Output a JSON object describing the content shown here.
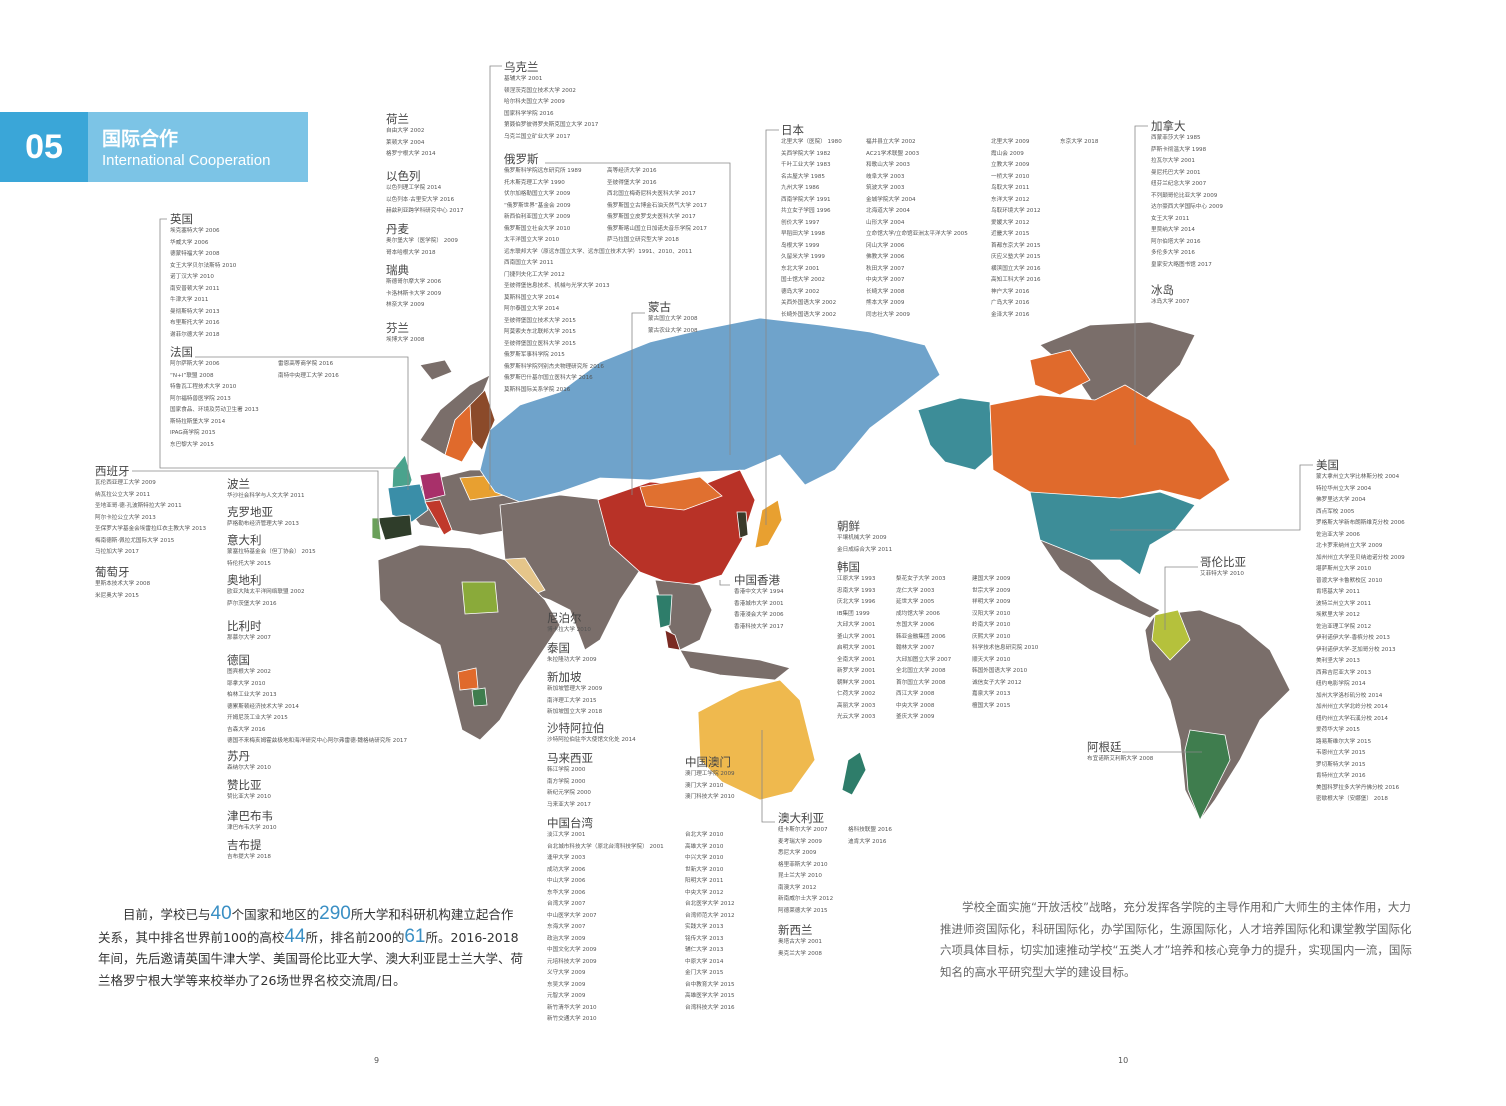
{
  "header": {
    "number": "05",
    "title_zh": "国际合作",
    "title_en": "International Cooperation"
  },
  "colors": {
    "band": "#7cc4e6",
    "band_dark": "#3aa6d8",
    "land": "#7a6e6a",
    "russia": "#6fa3cb",
    "china": "#b83227",
    "canada": "#e06a2c",
    "usa": "#3d8d98",
    "australia": "#efb94e",
    "colombia": "#b5c13c",
    "argentina": "#3f7d4e"
  },
  "countries": [
    {
      "name": "乌克兰",
      "cols": [
        [
          "基辅大学 2001",
          "顿涅茨克国立技术大学 2002",
          "哈尔科夫国立大学 2009",
          "国家科学学院 2016",
          "第聂伯罗彼得罗夫斯克国立大学 2017",
          "乌克兰国立矿业大学 2017"
        ]
      ]
    },
    {
      "name": "荷兰",
      "cols": [
        [
          "自由大学 2002",
          "莱顿大学 2004",
          "格罗宁根大学 2014"
        ]
      ]
    },
    {
      "name": "以色列",
      "cols": [
        [
          "以色列理工学院 2014",
          "以色列本·古里安大学 2016",
          "赫兹利亚跨学科研究中心 2017"
        ]
      ]
    },
    {
      "name": "丹麦",
      "cols": [
        [
          "奥尔堡大学（医学院） 2009",
          "哥本哈根大学 2018"
        ]
      ]
    },
    {
      "name": "瑞典",
      "cols": [
        [
          "斯德哥尔摩大学 2006",
          "卡洛林斯卡大学 2009",
          "林奈大学 2009"
        ]
      ]
    },
    {
      "name": "芬兰",
      "cols": [
        [
          "埃博大学 2008"
        ]
      ]
    },
    {
      "name": "俄罗斯",
      "cols": [
        [
          "俄罗斯科学院远东研究所 1989",
          "托木斯克理工大学 1990",
          "伏尔加格勒国立大学 2009",
          "“俄罗斯世界”基金会 2009",
          "新西伯利亚国立大学 2009",
          "俄罗斯国立社会大学 2010",
          "太平洋国立大学 2010",
          "远东联邦大学（原远东国立大学、远东国立技术大学）1991、2010、2011",
          "西南国立大学 2011",
          "门捷列夫化工大学 2012",
          "圣彼得堡信息技术、机械与光学大学 2013",
          "莫斯科国立大学 2014",
          "阿尔泰国立大学 2014",
          "圣彼得堡国立技术大学 2015",
          "阿莫索夫东北联邦大学 2015",
          "圣彼得堡国立医科大学 2015",
          "俄罗斯军事科学院 2015",
          "俄罗斯科学院列别杰夫物理研究所 2016",
          "俄罗斯巴什基尔国立医科大学 2016",
          "莫斯科国际关系学院 2016"
        ],
        [
          "高等经济大学 2016",
          "圣彼得堡大学 2016",
          "西北国立梅奇尼科夫医科大学 2017",
          "俄罗斯国立古博金石油天然气大学 2017",
          "俄罗斯国立皮罗戈夫医科大学 2017",
          "俄罗斯喀山国立日加诺夫音乐学院 2017",
          "萨马拉国立研究型大学 2018"
        ]
      ]
    },
    {
      "name": "英国",
      "cols": [
        [
          "埃克塞特大学 2006",
          "华威大学 2006",
          "德蒙特福大学 2008",
          "女王大学贝尔法斯特 2010",
          "诺丁汉大学 2010",
          "南安普顿大学 2011",
          "牛津大学 2011",
          "曼彻斯特大学 2013",
          "布里斯托大学 2016",
          "谢菲尔德大学 2018"
        ]
      ]
    },
    {
      "name": "法国",
      "cols": [
        [
          "阿尔萨斯大学 2006",
          "“N+I”联盟 2008",
          "特鲁瓦工程技术大学 2010",
          "阿尔福特兽医学院 2013",
          "国家食品、环境及劳动卫生署 2013",
          "斯特拉斯堡大学 2014",
          "IPAG商学院 2015",
          "东巴黎大学 2015"
        ],
        [
          "雷恩高等商学院 2016",
          "南特中央理工大学 2016"
        ]
      ]
    },
    {
      "name": "西班牙",
      "cols": [
        [
          "瓦伦西亚理工大学 2009",
          "纳瓦拉公立大学 2011",
          "圣地亚哥·德·孔波斯特拉大学 2011",
          "阿尔卡拉公立大学 2013",
          "圣保罗大学基金会埃雷拉红衣主教大学 2013",
          "梅南德斯·佩拉尤国际大学 2015",
          "马拉加大学 2017"
        ]
      ]
    },
    {
      "name": "葡萄牙",
      "cols": [
        [
          "里斯本技术大学 2008",
          "米尼奥大学 2015"
        ]
      ]
    },
    {
      "name": "波兰",
      "cols": [
        [
          "华沙社会科学与人文大学 2011"
        ]
      ]
    },
    {
      "name": "克罗地亚",
      "cols": [
        [
          "萨格勒布经济管理大学 2013"
        ]
      ]
    },
    {
      "name": "意大利",
      "cols": [
        [
          "蒙塞拉特基金会（但丁协会） 2015",
          "特伦托大学 2015"
        ]
      ]
    },
    {
      "name": "奥地利",
      "cols": [
        [
          "欧亚大陆太平洋网络联盟 2002",
          "萨尔茨堡大学 2016"
        ]
      ]
    },
    {
      "name": "比利时",
      "cols": [
        [
          "那慕尔大学 2007"
        ]
      ]
    },
    {
      "name": "德国",
      "cols": [
        [
          "图宾根大学 2002",
          "耶拿大学 2010",
          "柏林工业大学 2013",
          "德累斯顿经济技术大学 2014",
          "开姆尼茨工业大学 2015",
          "吉森大学 2016",
          "德国不来梅亥姆霍兹极地和海洋研究中心阿尔弗雷德·魏格纳研究所 2017"
        ]
      ]
    },
    {
      "name": "苏丹",
      "cols": [
        [
          "森纳尔大学 2010"
        ]
      ]
    },
    {
      "name": "赞比亚",
      "cols": [
        [
          "赞比亚大学 2010"
        ]
      ]
    },
    {
      "name": "津巴布韦",
      "cols": [
        [
          "津巴布韦大学 2010"
        ]
      ]
    },
    {
      "name": "吉布提",
      "cols": [
        [
          "吉布提大学 2018"
        ]
      ]
    },
    {
      "name": "蒙古",
      "cols": [
        [
          "蒙古国立大学 2008",
          "蒙古农业大学 2008"
        ]
      ]
    },
    {
      "name": "日本",
      "cols": [
        [
          "北里大学（医院） 1980",
          "关西学院大学 1982",
          "千叶工业大学 1983",
          "名古屋大学 1985",
          "九州大学 1986",
          "西南学院大学 1991",
          "共立女子学园 1996",
          "创价大学 1997",
          "早稻田大学 1998",
          "岛根大学 1999",
          "久留米大学 1999",
          "东北大学 2001",
          "国士馆大学 2002",
          "德岛大学 2002",
          "关西外国语大学 2002",
          "长崎外国语大学 2002"
        ],
        [
          "福井县立大学 2002",
          "AC21学术联盟 2003",
          "和歌山大学 2003",
          "岐阜大学 2003",
          "筑波大学 2003",
          "金城学院大学 2004",
          "北海道大学 2004",
          "山形大学 2004",
          "立命馆大学/立命馆亚洲太平洋大学 2005",
          "冈山大学 2006",
          "佛教大学 2006",
          "秋田大学 2007",
          "中央大学 2007",
          "长崎大学 2008",
          "熊本大学 2009",
          "同志社大学 2009"
        ],
        [
          "北里大学 2009",
          "霞山会 2009",
          "立教大学 2009",
          "一桥大学 2010",
          "鸟取大学 2011",
          "东洋大学 2012",
          "鸟取环境大学 2012",
          "爱媛大学 2012",
          "近畿大学 2015",
          "首都东京大学 2015",
          "庆应义塾大学 2015",
          "横滨国立大学 2016",
          "高知工科大学 2016",
          "神户大学 2016",
          "广岛大学 2016",
          "金泽大学 2016"
        ],
        [
          "东京大学 2018"
        ]
      ]
    },
    {
      "name": "加拿大",
      "cols": [
        [
          "西蒙菲莎大学 1985",
          "萨斯卡彻温大学 1998",
          "拉瓦尔大学 2001",
          "曼尼托巴大学 2001",
          "纽芬兰纪念大学 2007",
          "不列颠哥伦比亚大学 2009",
          "达尔豪西大学国际中心 2009",
          "女王大学 2011",
          "里贾纳大学 2014",
          "阿尔伯塔大学 2016",
          "多伦多大学 2016",
          "皇家安大略图书馆 2017"
        ]
      ]
    },
    {
      "name": "冰岛",
      "cols": [
        [
          "冰岛大学 2007"
        ]
      ]
    },
    {
      "name": "美国",
      "cols": [
        [
          "蒙大拿州立大学比林斯分校 2004",
          "特拉华州立大学 2004",
          "佛罗里达大学 2004",
          "西点军校 2005",
          "罗格斯大学新布朗斯维克分校 2006",
          "佐治亚大学 2006",
          "北卡罗来纳州立大学 2009",
          "加州州立大学圣贝纳迪诺分校 2009",
          "堪萨斯州立大学 2010",
          "普渡大学卡鲁默校区 2010",
          "肯塔基大学 2011",
          "波特兰州立大学 2011",
          "埃默里大学 2012",
          "佐治亚理工学院 2012",
          "伊利诺伊大学-香槟分校 2013",
          "伊利诺伊大学-芝加哥分校 2013",
          "美利坚大学 2013",
          "西弗吉尼亚大学 2013",
          "纽约电影学院 2014",
          "加州大学洛杉矶分校 2014",
          "加州州立大学北岭分校 2014",
          "纽约州立大学石溪分校 2014",
          "爱荷华大学 2015",
          "路易斯维尔大学 2015",
          "韦恩州立大学 2015",
          "罗切斯特大学 2015",
          "肯特州立大学 2016",
          "美国科罗拉多大学丹佛分校 2016",
          "密歇根大学（安娜堡） 2018"
        ]
      ]
    },
    {
      "name": "朝鲜",
      "cols": [
        [
          "平壤机械大学 2009",
          "金日成综合大学 2011"
        ]
      ]
    },
    {
      "name": "韩国",
      "cols": [
        [
          "江原大学 1993",
          "忠南大学 1993",
          "庆北大学 1996",
          "IB集团 1999",
          "大邱大学 2001",
          "釜山大学 2001",
          "启明大学 2001",
          "全南大学 2001",
          "新罗大学 2001",
          "朝鲜大学 2001",
          "仁荷大学 2002",
          "高丽大学 2003",
          "光云大学 2003"
        ],
        [
          "梨花女子大学 2003",
          "龙仁大学 2003",
          "延世大学 2005",
          "成均馆大学 2006",
          "东国大学 2006",
          "韩亚金融集团 2006",
          "翰林大学 2007",
          "大邱加图立大学 2007",
          "全北国立大学 2008",
          "首尔国立大学 2008",
          "西江大学 2008",
          "中央大学 2008",
          "釜庆大学 2009"
        ],
        [
          "建国大学 2009",
          "世宗大学 2009",
          "祥明大学 2009",
          "汉阳大学 2010",
          "岭南大学 2010",
          "庆熙大学 2010",
          "科学技术信息研究院 2010",
          "顺天大学 2010",
          "韩国外国语大学 2010",
          "诚信女子大学 2012",
          "嘉泉大学 2013",
          "檀国大学 2015"
        ]
      ]
    },
    {
      "name": "中国香港",
      "cols": [
        [
          "香港中文大学 1994",
          "香港城市大学 2001",
          "香港浸会大学 2006",
          "香港科技大学 2017"
        ]
      ]
    },
    {
      "name": "尼泊尔",
      "cols": [
        [
          "博卡拉大学 2010"
        ]
      ]
    },
    {
      "name": "泰国",
      "cols": [
        [
          "朱拉隆功大学 2009"
        ]
      ]
    },
    {
      "name": "新加坡",
      "cols": [
        [
          "新加坡管理大学 2009",
          "南洋理工大学 2015",
          "新加坡国立大学 2018"
        ]
      ]
    },
    {
      "name": "沙特阿拉伯",
      "cols": [
        [
          "沙特阿拉伯驻华大使馆文化处 2014"
        ]
      ]
    },
    {
      "name": "马来西亚",
      "cols": [
        [
          "韩江学院 2000",
          "南方学院 2000",
          "新纪元学院 2000",
          "马来亚大学 2017"
        ]
      ]
    },
    {
      "name": "中国澳门",
      "cols": [
        [
          "澳门理工学院 2009",
          "澳门大学 2010",
          "澳门科技大学 2010"
        ]
      ]
    },
    {
      "name": "中国台湾",
      "cols": [
        [
          "淡江大学 2001",
          "台北城市科技大学（原北台湾科技学院） 2001",
          "逢甲大学 2003",
          "成功大学 2006",
          "中山大学 2006",
          "东华大学 2006",
          "台湾大学 2007",
          "中山医学大学 2007",
          "东海大学 2007",
          "政治大学 2009",
          "中国文化大学 2009",
          "元培科技大学 2009",
          "义守大学 2009",
          "东吴大学 2009",
          "元智大学 2009",
          "新竹清华大学 2010",
          "新竹交通大学 2010"
        ],
        [
          "台北大学 2010",
          "高雄大学 2010",
          "中兴大学 2010",
          "世新大学 2010",
          "阳明大学 2011",
          "中央大学 2012",
          "台北医学大学 2012",
          "台湾师范大学 2012",
          "实践大学 2013",
          "铭传大学 2013",
          "辅仁大学 2013",
          "中原大学 2014",
          "金门大学 2015",
          "台中教育大学 2015",
          "高雄医学大学 2015",
          "台湾科技大学 2016"
        ]
      ]
    },
    {
      "name": "澳大利亚",
      "cols": [
        [
          "纽卡斯尔大学 2007",
          "麦考瑞大学 2009",
          "悉尼大学 2009",
          "格里菲斯大学 2010",
          "昆士兰大学 2010",
          "南澳大学 2012",
          "新南威尔士大学 2012",
          "阿德莱德大学 2015"
        ],
        [
          "格科技联盟 2016",
          "迪肯大学 2016"
        ]
      ]
    },
    {
      "name": "新西兰",
      "cols": [
        [
          "奥塔古大学 2001",
          "奥克兰大学 2008"
        ]
      ]
    },
    {
      "name": "哥伦比亚",
      "cols": [
        [
          "艾菲特大学 2010"
        ]
      ]
    },
    {
      "name": "阿根廷",
      "cols": [
        [
          "布宜诺斯艾利斯大学 2008"
        ]
      ]
    }
  ],
  "intro_left": [
    {
      "t": "目前，学校已与"
    },
    {
      "t": "40",
      "hl": true
    },
    {
      "t": "个国家和地区的"
    },
    {
      "t": "290",
      "hl": true
    },
    {
      "t": "所大学和科研机构建立起合作关系，其中排名世界前100的高校"
    },
    {
      "t": "44",
      "hl": true
    },
    {
      "t": "所，排名前200的"
    },
    {
      "t": "61",
      "hl": true
    },
    {
      "t": "所。2016-2018年间，先后邀请英国牛津大学、美国哥伦比亚大学、澳大利亚昆士兰大学、荷兰格罗宁根大学等来校举办了26场世界名校交流周/日。"
    }
  ],
  "intro_right": "学校全面实施“开放活校”战略，充分发挥各学院的主导作用和广大师生的主体作用，大力推进师资国际化，科研国际化，办学国际化，生源国际化，人才培养国际化和课堂教学国际化六项具体目标，切实加速推动学校“五类人才”培养和核心竞争力的提升，实现国内一流，国际知名的高水平研究型大学的建设目标。",
  "pages": {
    "left": "9",
    "right": "10"
  }
}
